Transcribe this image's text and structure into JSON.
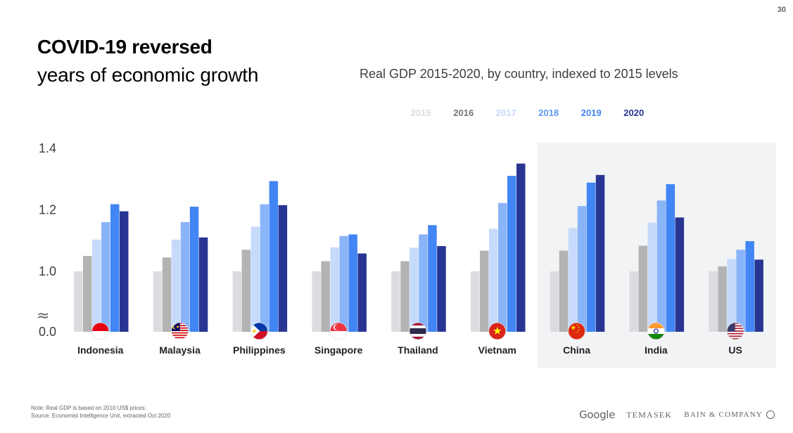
{
  "page_number": "30",
  "title": {
    "bold": "COVID-19 reversed",
    "light": "years of economic growth"
  },
  "chart_data": {
    "type": "bar",
    "title": "Real GDP 2015-2020, by country, indexed to 2015 levels",
    "categories": [
      "Indonesia",
      "Malaysia",
      "Philippines",
      "Singapore",
      "Thailand",
      "Vietnam",
      "China",
      "India",
      "US"
    ],
    "series": [
      {
        "name": "2015",
        "color": "#dadce0",
        "values": [
          1.0,
          1.0,
          1.0,
          1.0,
          1.0,
          1.0,
          1.0,
          1.0,
          1.0
        ]
      },
      {
        "name": "2016",
        "color": "#b3b3b3",
        "values": [
          1.05,
          1.045,
          1.07,
          1.033,
          1.033,
          1.067,
          1.067,
          1.083,
          1.016
        ]
      },
      {
        "name": "2017",
        "color": "#c6dafc",
        "values": [
          1.103,
          1.103,
          1.145,
          1.078,
          1.077,
          1.138,
          1.14,
          1.158,
          1.04
        ]
      },
      {
        "name": "2018",
        "color": "#8ab4f8",
        "values": [
          1.16,
          1.16,
          1.218,
          1.115,
          1.12,
          1.222,
          1.212,
          1.23,
          1.07
        ]
      },
      {
        "name": "2019",
        "color": "#4285f4",
        "values": [
          1.218,
          1.21,
          1.293,
          1.12,
          1.15,
          1.31,
          1.288,
          1.283,
          1.098
        ]
      },
      {
        "name": "2020",
        "color": "#283593",
        "values": [
          1.195,
          1.11,
          1.215,
          1.058,
          1.082,
          1.35,
          1.313,
          1.175,
          1.038
        ]
      }
    ],
    "legend_text_colors": [
      "#dadce0",
      "#757575",
      "#c6dafc",
      "#5e97f6",
      "#4285f4",
      "#283593"
    ],
    "y_tick_labels": [
      "1.4",
      "1.2",
      "1.0",
      "0.0"
    ],
    "y_tick_values": [
      1.4,
      1.2,
      1.0,
      0.0
    ],
    "axis_break": "≈",
    "highlighted_categories": [
      "China",
      "India",
      "US"
    ],
    "flags": [
      "indonesia-flag",
      "malaysia-flag",
      "philippines-flag",
      "singapore-flag",
      "thailand-flag",
      "vietnam-flag",
      "china-flag",
      "india-flag",
      "us-flag"
    ]
  },
  "footnote": {
    "note": "Note: Real GDP is based on 2010 US$ prices.",
    "source": "Source: Economist Intelligence Unit, extracted Oct 2020"
  },
  "logos": {
    "google": "Google",
    "temasek": "TEMASEK",
    "bain": "BAIN & COMPANY"
  }
}
